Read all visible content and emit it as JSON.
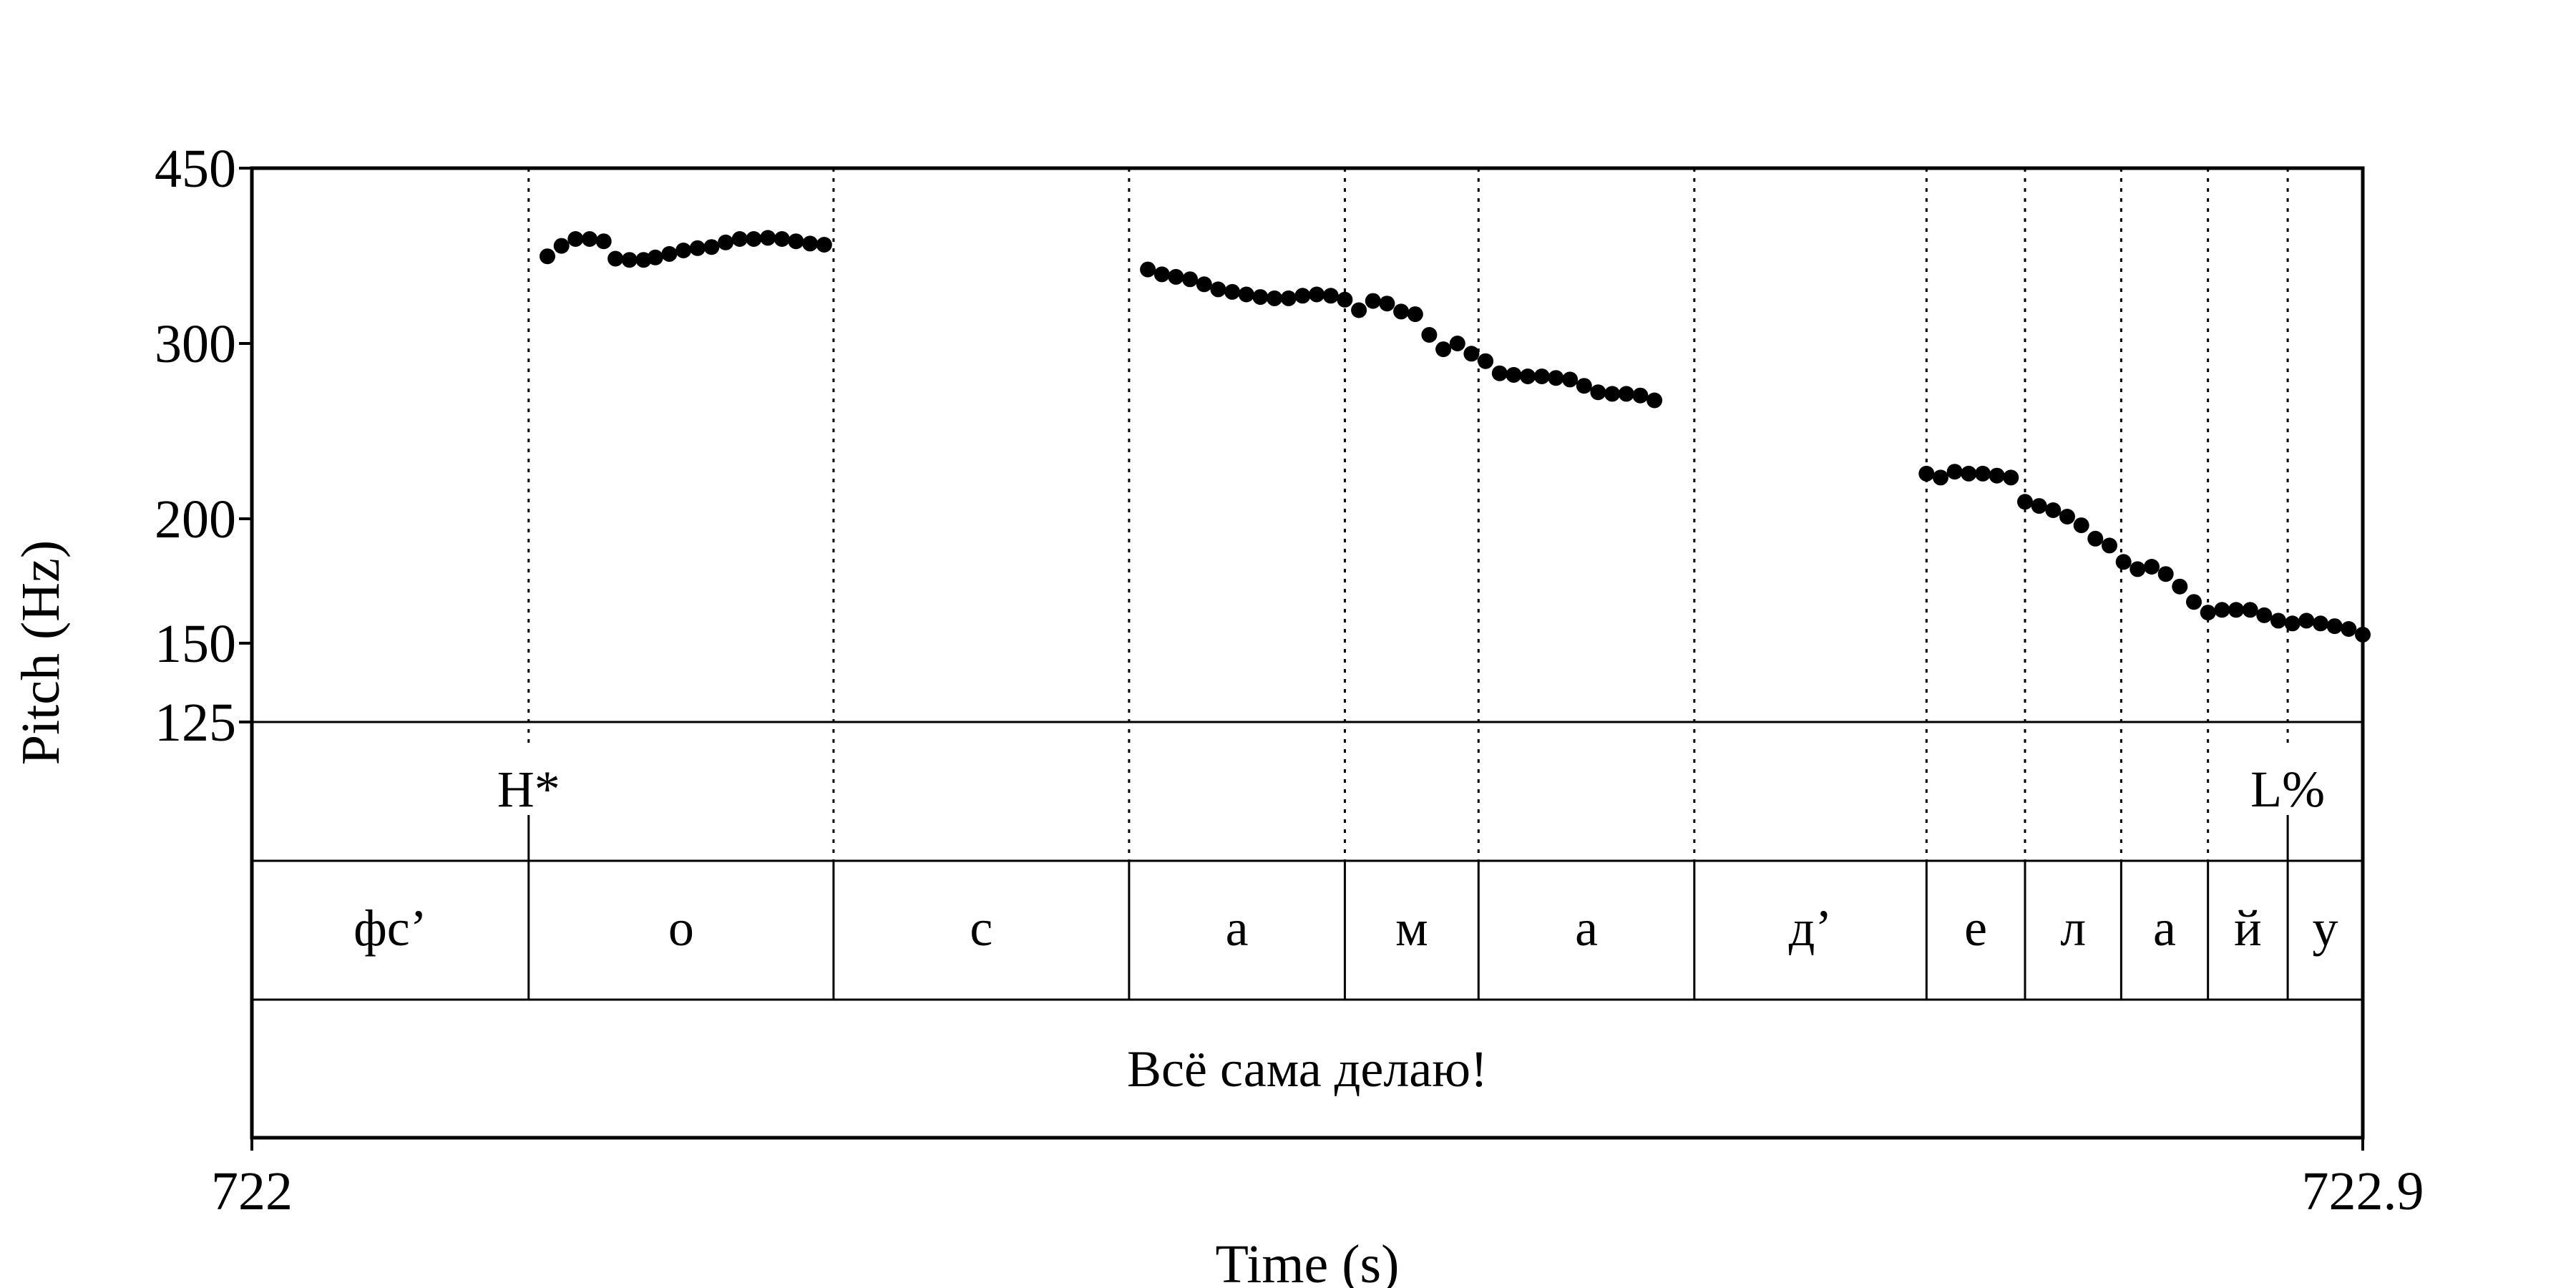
{
  "chart_data": {
    "type": "scatter",
    "title": "",
    "xlabel": "Time (s)",
    "ylabel": "Pitch (Hz)",
    "xlim": [
      722,
      722.9
    ],
    "ylim": [
      125,
      450
    ],
    "yscale": "log",
    "x_ticks": [
      {
        "value": 722,
        "label": "722"
      },
      {
        "value": 722.9,
        "label": "722.9"
      }
    ],
    "y_ticks": [
      {
        "value": 125,
        "label": "125"
      },
      {
        "value": 150,
        "label": "150"
      },
      {
        "value": 200,
        "label": "200"
      },
      {
        "value": 300,
        "label": "300"
      },
      {
        "value": 450,
        "label": "450"
      }
    ],
    "grid": false,
    "legend": "none",
    "tones": [
      {
        "time": 722.118,
        "label": "H*"
      },
      {
        "time": 722.868,
        "label": "L%"
      }
    ],
    "segments": [
      {
        "start": 722.0,
        "end": 722.118,
        "label": "фс’"
      },
      {
        "start": 722.118,
        "end": 722.248,
        "label": "о"
      },
      {
        "start": 722.248,
        "end": 722.374,
        "label": "с"
      },
      {
        "start": 722.374,
        "end": 722.466,
        "label": "а"
      },
      {
        "start": 722.466,
        "end": 722.523,
        "label": "м"
      },
      {
        "start": 722.523,
        "end": 722.615,
        "label": "а"
      },
      {
        "start": 722.615,
        "end": 722.714,
        "label": "д’"
      },
      {
        "start": 722.714,
        "end": 722.756,
        "label": "е"
      },
      {
        "start": 722.756,
        "end": 722.797,
        "label": "л"
      },
      {
        "start": 722.797,
        "end": 722.834,
        "label": "а"
      },
      {
        "start": 722.834,
        "end": 722.868,
        "label": "й"
      },
      {
        "start": 722.868,
        "end": 722.9,
        "label": "у"
      }
    ],
    "utterance": {
      "start": 722.0,
      "end": 722.9,
      "label": "Всё сама делаю!"
    },
    "series": [
      {
        "points": [
          [
            722.126,
            367
          ],
          [
            722.132,
            376
          ],
          [
            722.138,
            382
          ],
          [
            722.144,
            382
          ],
          [
            722.15,
            380
          ],
          [
            722.155,
            365
          ],
          [
            722.161,
            364
          ],
          [
            722.167,
            364
          ],
          [
            722.172,
            366
          ],
          [
            722.178,
            369
          ],
          [
            722.184,
            372
          ],
          [
            722.19,
            374
          ],
          [
            722.196,
            375
          ],
          [
            722.202,
            379
          ],
          [
            722.208,
            382
          ],
          [
            722.214,
            382
          ],
          [
            722.22,
            383
          ],
          [
            722.226,
            382
          ],
          [
            722.232,
            380
          ],
          [
            722.238,
            378
          ],
          [
            722.244,
            377
          ],
          [
            722.382,
            356
          ],
          [
            722.388,
            352
          ],
          [
            722.394,
            350
          ],
          [
            722.4,
            348
          ],
          [
            722.406,
            344
          ],
          [
            722.412,
            340
          ],
          [
            722.418,
            338
          ],
          [
            722.424,
            336
          ],
          [
            722.43,
            334
          ],
          [
            722.436,
            333
          ],
          [
            722.442,
            333
          ],
          [
            722.448,
            335
          ],
          [
            722.454,
            336
          ],
          [
            722.46,
            335
          ],
          [
            722.466,
            332
          ],
          [
            722.472,
            324
          ],
          [
            722.478,
            331
          ],
          [
            722.484,
            329
          ],
          [
            722.49,
            323
          ],
          [
            722.496,
            321
          ],
          [
            722.502,
            306
          ],
          [
            722.508,
            296
          ],
          [
            722.514,
            300
          ],
          [
            722.52,
            293
          ],
          [
            722.526,
            288
          ],
          [
            722.532,
            280
          ],
          [
            722.538,
            279
          ],
          [
            722.544,
            278
          ],
          [
            722.55,
            278
          ],
          [
            722.556,
            277
          ],
          [
            722.562,
            276
          ],
          [
            722.568,
            272
          ],
          [
            722.574,
            268
          ],
          [
            722.58,
            267
          ],
          [
            722.586,
            267
          ],
          [
            722.592,
            266
          ],
          [
            722.598,
            263
          ],
          [
            722.714,
            222
          ],
          [
            722.72,
            220
          ],
          [
            722.726,
            223
          ],
          [
            722.732,
            222
          ],
          [
            722.738,
            222
          ],
          [
            722.744,
            221
          ],
          [
            722.75,
            220
          ],
          [
            722.756,
            208
          ],
          [
            722.762,
            206
          ],
          [
            722.768,
            204
          ],
          [
            722.774,
            201
          ],
          [
            722.78,
            197
          ],
          [
            722.786,
            191
          ],
          [
            722.792,
            188
          ],
          [
            722.798,
            181
          ],
          [
            722.804,
            178
          ],
          [
            722.81,
            179
          ],
          [
            722.816,
            176
          ],
          [
            722.822,
            171
          ],
          [
            722.828,
            165
          ],
          [
            722.834,
            161
          ],
          [
            722.84,
            162
          ],
          [
            722.846,
            162
          ],
          [
            722.852,
            162
          ],
          [
            722.858,
            160
          ],
          [
            722.864,
            158
          ],
          [
            722.87,
            157
          ],
          [
            722.876,
            158
          ],
          [
            722.882,
            157
          ],
          [
            722.888,
            156
          ],
          [
            722.894,
            155
          ],
          [
            722.9,
            153
          ]
        ]
      }
    ]
  }
}
